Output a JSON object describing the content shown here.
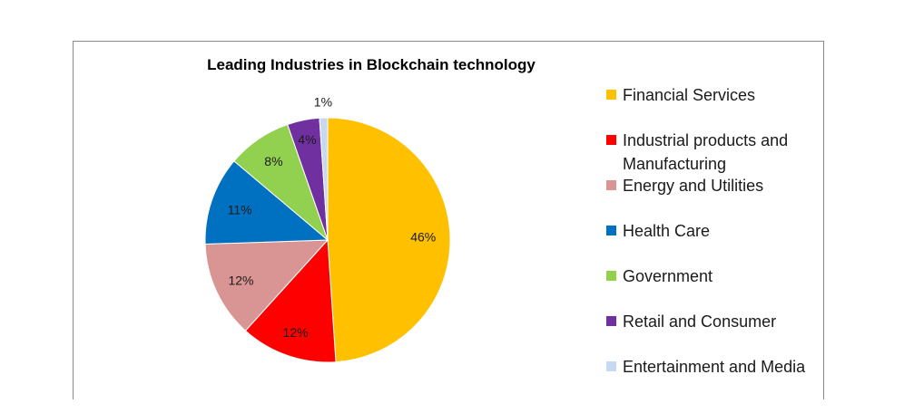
{
  "chart_data": {
    "type": "pie",
    "title": "Leading Industries in Blockchain technology",
    "legend_position": "right",
    "slices": [
      {
        "name": "Financial Services",
        "value": 46,
        "label": "46%",
        "color": "#FFC000"
      },
      {
        "name": "Industrial products and Manufacturing",
        "value": 12,
        "label": "12%",
        "color": "#FF0000"
      },
      {
        "name": "Energy and Utilities",
        "value": 12,
        "label": "12%",
        "color": "#D99594"
      },
      {
        "name": "Health Care",
        "value": 11,
        "label": "11%",
        "color": "#0070C0"
      },
      {
        "name": "Government",
        "value": 8,
        "label": "8%",
        "color": "#92D050"
      },
      {
        "name": "Retail and Consumer",
        "value": 4,
        "label": "4%",
        "color": "#7030A0"
      },
      {
        "name": "Entertainment and Media",
        "value": 1,
        "label": "1%",
        "color": "#C6D9F1"
      }
    ]
  }
}
